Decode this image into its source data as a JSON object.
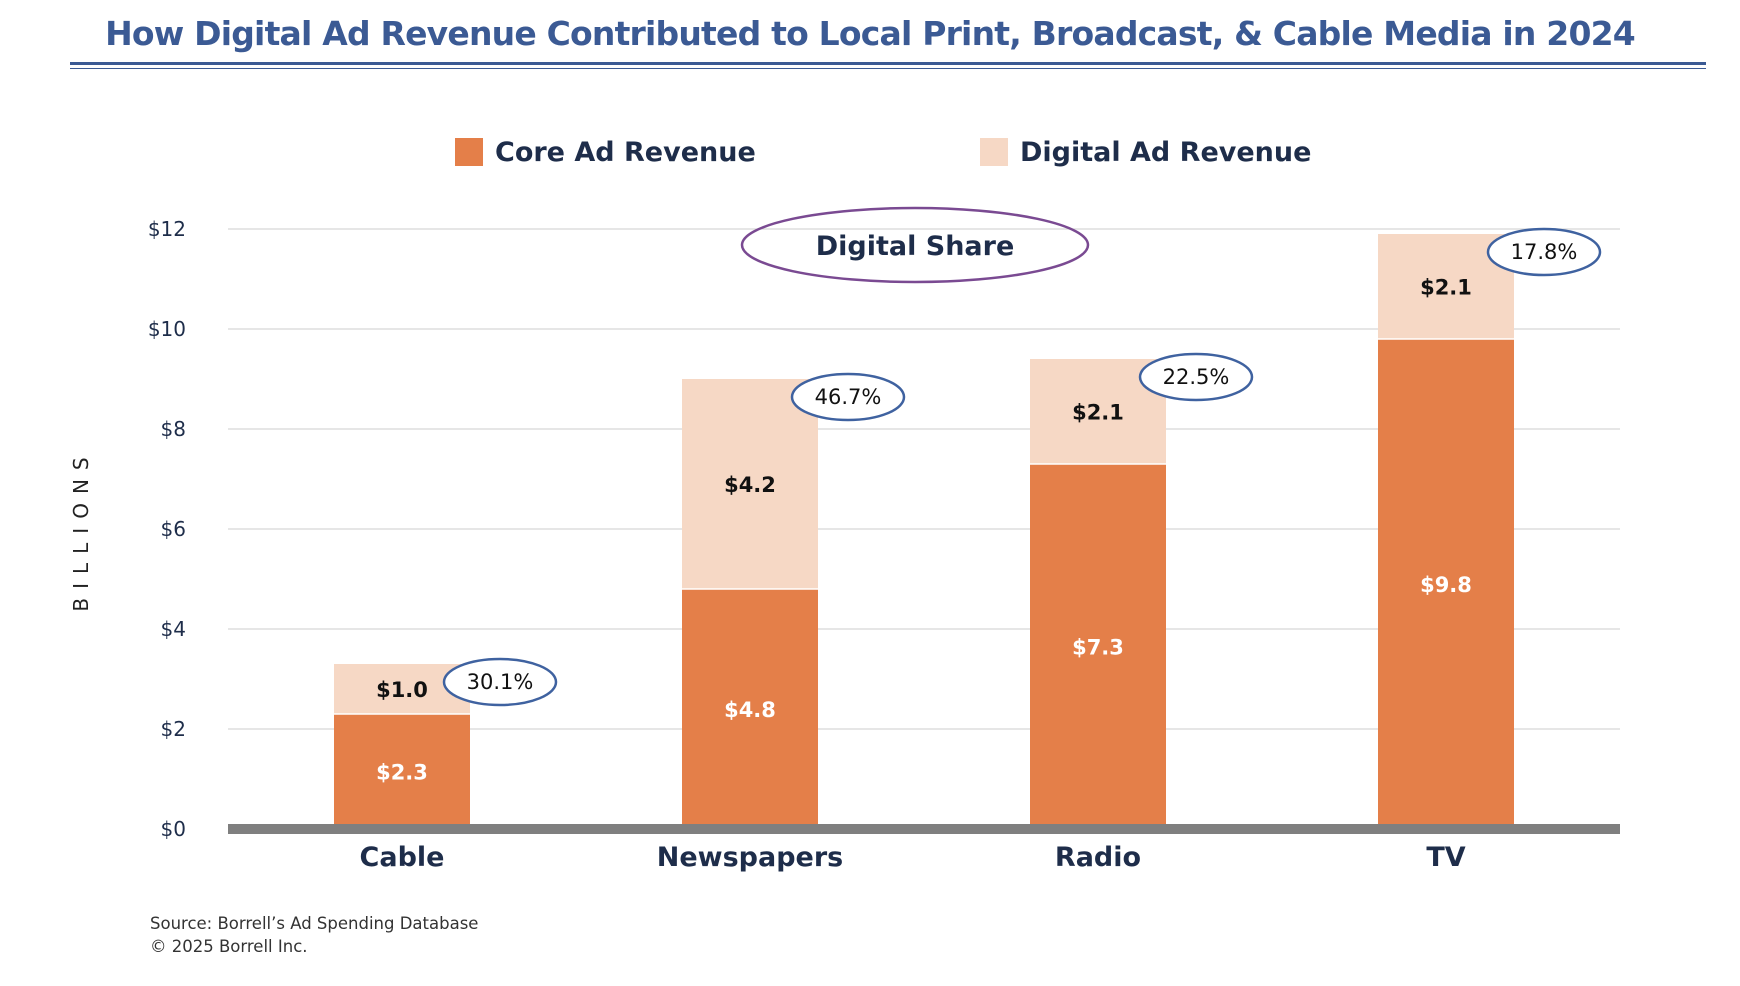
{
  "title": "How Digital Ad Revenue Contributed to Local Print, Broadcast, & Cable Media in 2024",
  "colors": {
    "title": "#3b5a94",
    "core": "#e47f49",
    "digital": "#f6d8c5",
    "axis_baseline": "#7f7f7f",
    "share_ellipse": "#3f62a0",
    "callout_ellipse": "#7a4a92"
  },
  "legend": {
    "core_label": "Core Ad Revenue",
    "digital_label": "Digital Ad Revenue"
  },
  "callout": "Digital Share",
  "footer": {
    "source": "Source: Borrell’s Ad Spending Database",
    "copyright": "© 2025 Borrell Inc."
  },
  "chart_data": {
    "type": "bar",
    "stacked": true,
    "title": "How Digital Ad Revenue Contributed to Local Print, Broadcast, & Cable Media in 2024",
    "xlabel": "",
    "ylabel": "BILLIONS",
    "categories": [
      "Cable",
      "Newspapers",
      "Radio",
      "TV"
    ],
    "series": [
      {
        "name": "Core Ad Revenue",
        "values": [
          2.3,
          4.8,
          7.3,
          9.8
        ],
        "labels": [
          "$2.3",
          "$4.8",
          "$7.3",
          "$9.8"
        ]
      },
      {
        "name": "Digital Ad Revenue",
        "values": [
          1.0,
          4.2,
          2.1,
          2.1
        ],
        "labels": [
          "$1.0",
          "$4.2",
          "$2.1",
          "$2.1"
        ]
      }
    ],
    "digital_share": [
      "30.1%",
      "46.7%",
      "22.5%",
      "17.8%"
    ],
    "ylim": [
      0,
      12
    ],
    "yticks": [
      0,
      2,
      4,
      6,
      8,
      10,
      12
    ],
    "ytick_labels": [
      "$0",
      "$2",
      "$4",
      "$6",
      "$8",
      "$10",
      "$12"
    ],
    "grid": true,
    "legend_position": "top"
  }
}
